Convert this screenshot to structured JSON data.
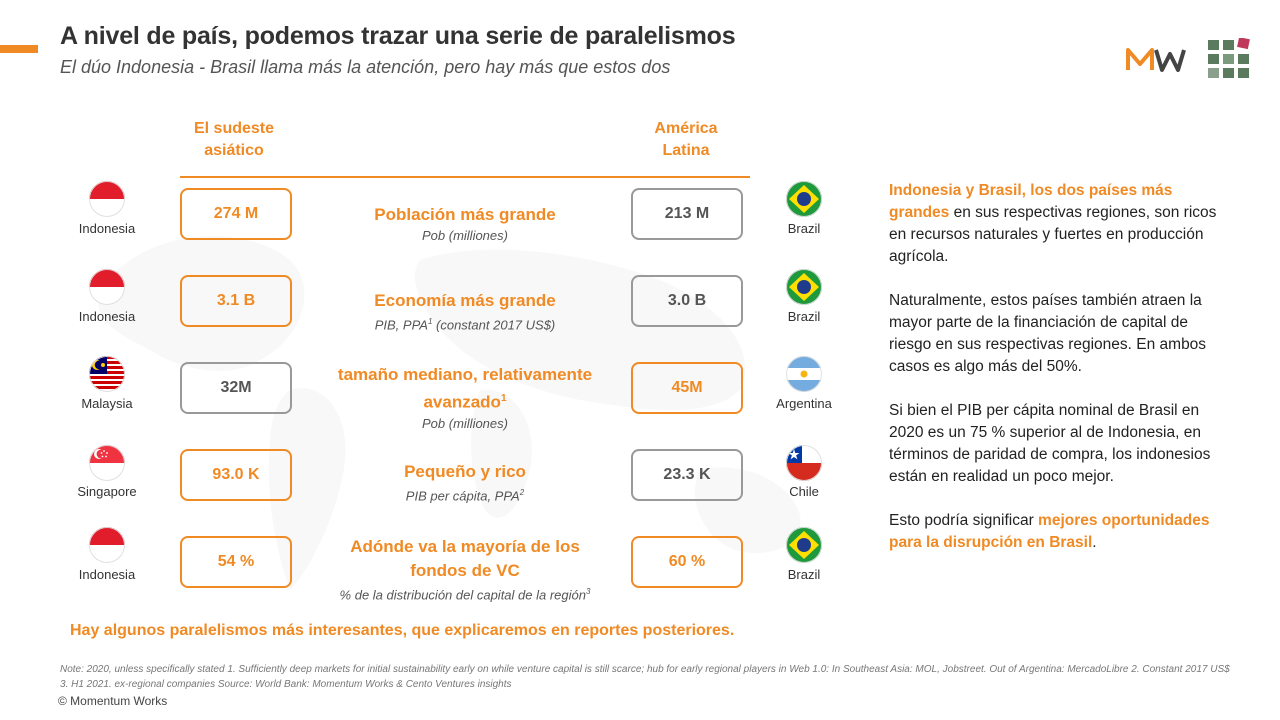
{
  "header": {
    "title": "A nivel de país, podemos trazar una serie de paralelismos",
    "subtitle": "El dúo Indonesia - Brasil llama más la atención, pero hay más que estos dos"
  },
  "colors": {
    "accent": "#F08A24",
    "muted_border": "#999999"
  },
  "columns": {
    "left": "El sudeste asiático",
    "right": "América Latina"
  },
  "rows": [
    {
      "left_country": "Indonesia",
      "left_value": "274 M",
      "label": "Población más grande",
      "sup": "",
      "sub": "Pob (milliones)",
      "sub_sup": "",
      "right_value": "213 M",
      "right_country": "Brazil"
    },
    {
      "left_country": "Indonesia",
      "left_value": "3.1 B",
      "label": "Economía más grande",
      "sup": "",
      "sub_a": "PIB, PPA",
      "sub_sup_a": "1",
      "sub_b": " (constant 2017 US$)",
      "right_value": "3.0 B",
      "right_country": "Brazil"
    },
    {
      "left_country": "Malaysia",
      "left_value": "32M",
      "label_a": "tamaño mediano, relativamente",
      "label_b": "avanzado",
      "sup": "1",
      "sub": "Pob (milliones)",
      "right_value": "45M",
      "right_country": "Argentina"
    },
    {
      "left_country": "Singapore",
      "left_value": "93.0 K",
      "label": "Pequeño y rico",
      "sub": "PIB per cápita, PPA",
      "sub_sup": "2",
      "right_value": "23.3 K",
      "right_country": "Chile"
    },
    {
      "left_country": "Indonesia",
      "left_value": "54 %",
      "label_a": "Adónde va la mayoría de los",
      "label_b": "fondos de VC",
      "sub": "% de la distribución del capital de la región",
      "sub_sup": "3",
      "right_value": "60 %",
      "right_country": "Brazil"
    }
  ],
  "callout": "Hay algunos paralelismos más interesantes, que explicaremos en reportes posteriores.",
  "sidebar": {
    "p1_hl": "Indonesia y Brasil, los dos países más grandes",
    "p1_rest": " en sus respectivas regiones, son ricos en recursos naturales y fuertes en producción agrícola.",
    "p2": "Naturalmente, estos países también atraen la mayor parte de la financiación de capital de riesgo en sus respectivas regiones. En ambos casos es algo más del 50%.",
    "p3": "Si bien el PIB per cápita nominal de Brasil en 2020 es un 75 % superior al de Indonesia, en términos de paridad de compra, los indonesios están en realidad un poco mejor.",
    "p4_a": "Esto podría significar ",
    "p4_hl": "mejores oportunidades para la disrupción en Brasil",
    "p4_b": "."
  },
  "note": "Note: 2020, unless specifically stated     1. Sufficiently deep markets for initial sustainability early on while venture capital is still scarce; hub for early regional players in Web 1.0: In Southeast Asia: MOL, Jobstreet. Out of Argentina: MercadoLibre     2. Constant 2017 US$     3. H1 2021. ex-regional companies     Source: World Bank: Momentum Works & Cento Ventures insights",
  "copyright": "© Momentum Works"
}
